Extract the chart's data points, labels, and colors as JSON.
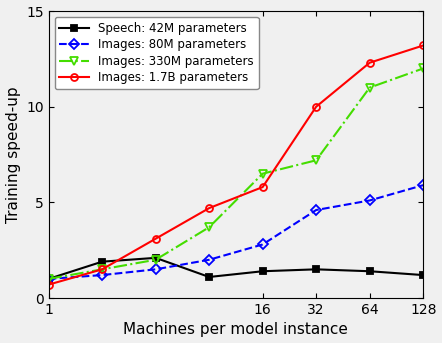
{
  "title": "",
  "xlabel": "Machines per model instance",
  "ylabel": "Training speed-up",
  "ylim": [
    0,
    15
  ],
  "yticks": [
    0,
    5,
    10,
    15
  ],
  "series": [
    {
      "label": "Speech: 42M parameters",
      "color": "black",
      "linestyle": "-",
      "marker": "s",
      "markersize": 5,
      "linewidth": 1.5,
      "markerfacecolor": "black",
      "x": [
        1,
        2,
        4,
        8,
        16,
        32,
        64,
        128
      ],
      "y": [
        1.0,
        1.9,
        2.1,
        1.1,
        1.4,
        1.5,
        1.4,
        1.2
      ]
    },
    {
      "label": "Images: 80M parameters",
      "color": "blue",
      "linestyle": "--",
      "marker": "D",
      "markersize": 5,
      "linewidth": 1.5,
      "markerfacecolor": "none",
      "x": [
        1,
        2,
        4,
        8,
        16,
        32,
        64,
        128
      ],
      "y": [
        1.0,
        1.2,
        1.5,
        2.0,
        2.8,
        4.6,
        5.1,
        5.9
      ]
    },
    {
      "label": "Images: 330M parameters",
      "color": "#44dd00",
      "linestyle": "-.",
      "marker": "v",
      "markersize": 6,
      "linewidth": 1.5,
      "markerfacecolor": "none",
      "x": [
        1,
        2,
        4,
        8,
        16,
        32,
        64,
        128
      ],
      "y": [
        1.0,
        1.5,
        2.0,
        3.7,
        6.5,
        7.2,
        11.0,
        12.0
      ]
    },
    {
      "label": "Images: 1.7B parameters",
      "color": "red",
      "linestyle": "-",
      "marker": "o",
      "markersize": 5,
      "linewidth": 1.5,
      "markerfacecolor": "none",
      "x": [
        1,
        2,
        4,
        8,
        16,
        32,
        64,
        128
      ],
      "y": [
        0.7,
        1.5,
        3.1,
        4.7,
        5.8,
        10.0,
        12.3,
        13.2
      ]
    }
  ],
  "legend_loc": "upper left",
  "legend_fontsize": 8.5,
  "tick_fontsize": 10,
  "axis_label_fontsize": 11,
  "background_color": "#f0f0f0",
  "custom_xtick_positions": [
    1,
    16,
    32,
    64,
    128
  ],
  "custom_xtick_labels": [
    "1",
    "16",
    "32",
    "64",
    "128"
  ]
}
